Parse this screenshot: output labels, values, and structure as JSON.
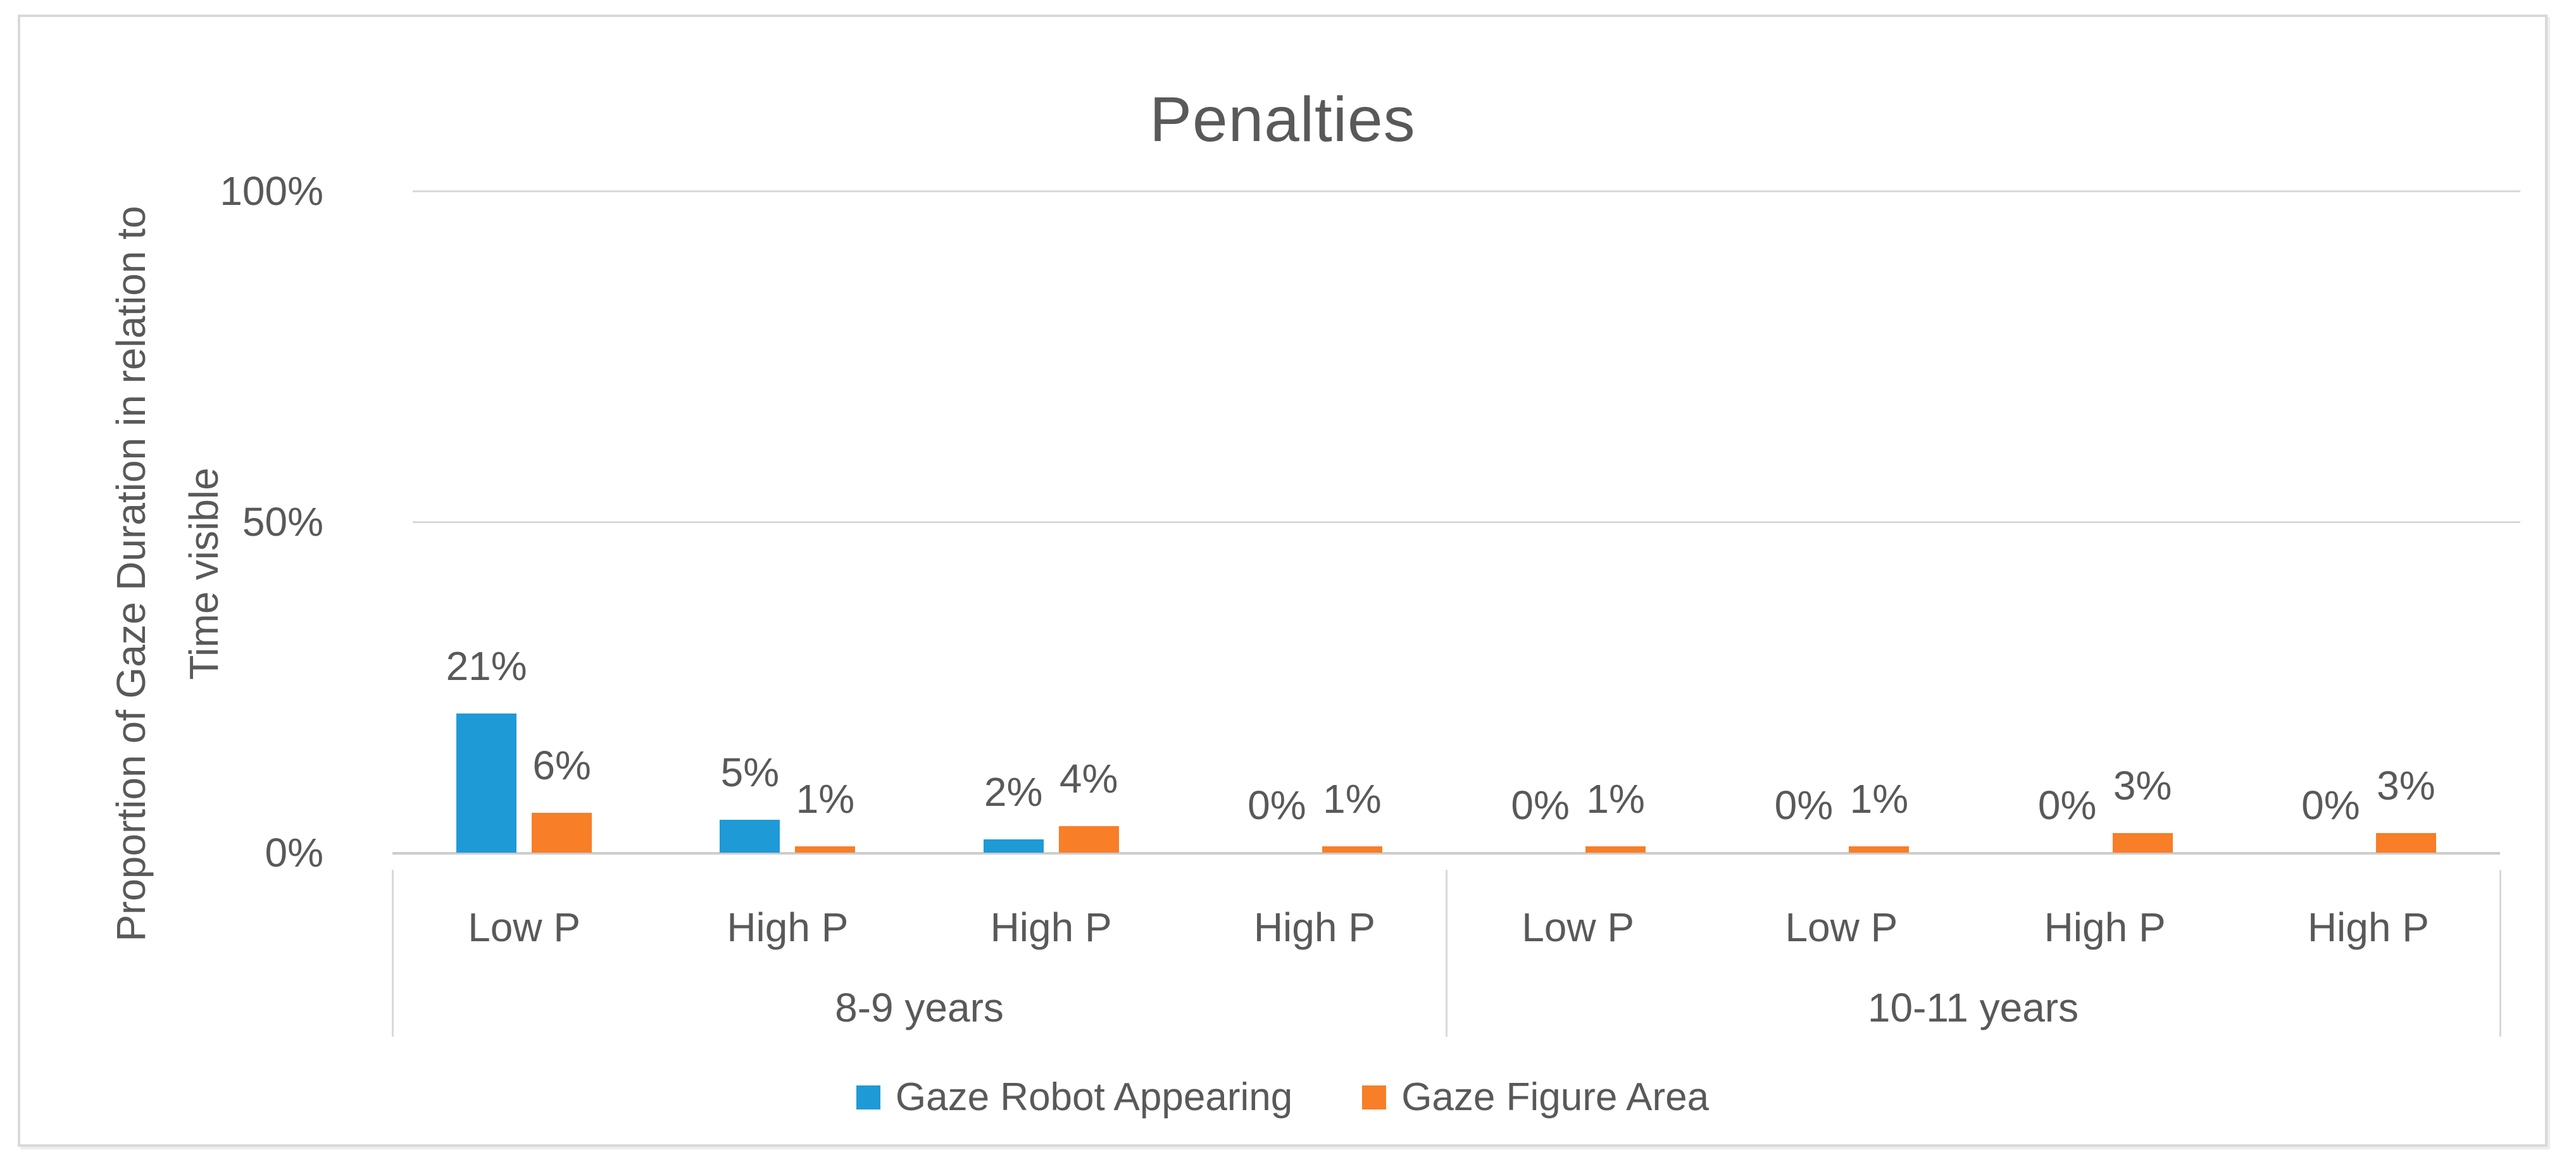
{
  "chart_data": {
    "type": "bar",
    "title": "Penalties",
    "ylabel_lines": [
      "Proportion of Gaze Duration in relation to",
      "Time visible"
    ],
    "ylim": [
      0,
      100
    ],
    "yticks": [
      {
        "label": "100%",
        "value": 100
      },
      {
        "label": "50%",
        "value": 50
      },
      {
        "label": "0%",
        "value": 0
      }
    ],
    "grid": true,
    "legend_position": "bottom",
    "groups": [
      {
        "label": "8-9 years",
        "categories": [
          "Low P",
          "High P",
          "High P",
          "High P"
        ]
      },
      {
        "label": "10-11 years",
        "categories": [
          "Low P",
          "Low P",
          "High P",
          "High P"
        ]
      }
    ],
    "series": [
      {
        "name": "Gaze Robot Appearing",
        "color": "#1E9AD7",
        "values": [
          21,
          5,
          2,
          0,
          0,
          0,
          0,
          0
        ]
      },
      {
        "name": "Gaze Figure Area",
        "color": "#F87E28",
        "values": [
          6,
          1,
          4,
          1,
          1,
          1,
          3,
          3
        ]
      }
    ],
    "data_label_suffix": "%",
    "colors": {
      "text": "#595959",
      "gridline": "#D9D9D9",
      "axis_line": "#CCCCCC",
      "border": "#D9D9D9"
    }
  }
}
